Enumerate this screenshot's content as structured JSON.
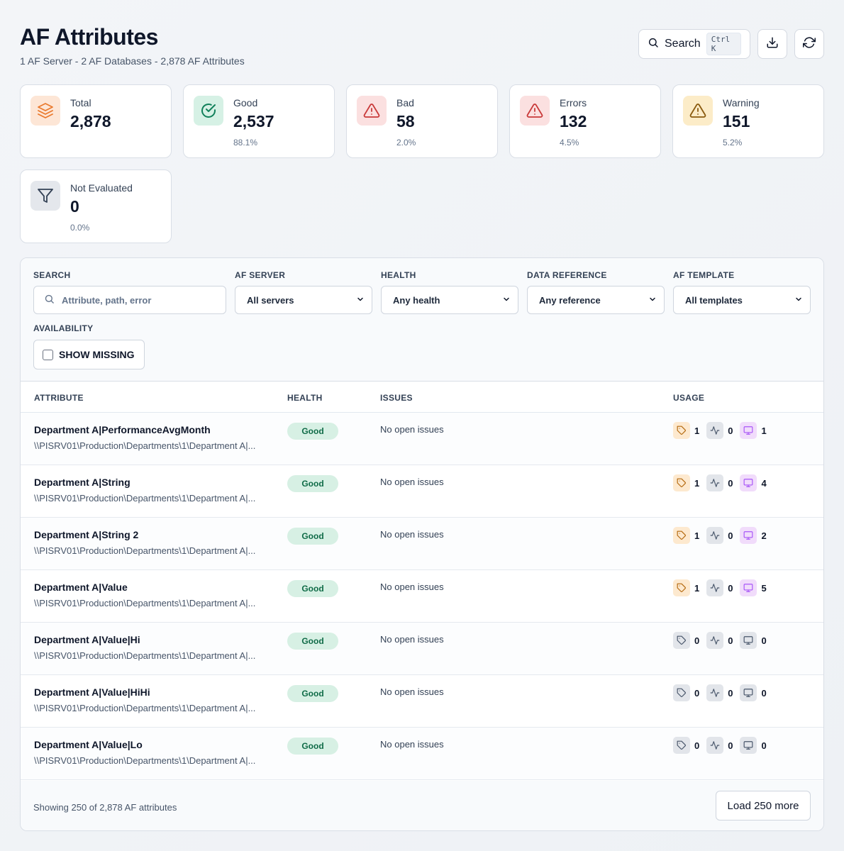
{
  "header": {
    "title": "AF Attributes",
    "subtitle": "1 AF Server - 2 AF Databases - 2,878 AF Attributes",
    "search_label": "Search",
    "search_shortcut": "Ctrl K"
  },
  "stats": [
    {
      "label": "Total",
      "value": "2,878",
      "pct": "",
      "icon": "layers-icon",
      "color": "#ea7a2e",
      "bg": "#fde6d6"
    },
    {
      "label": "Good",
      "value": "2,537",
      "pct": "88.1%",
      "icon": "check-circle-icon",
      "color": "#10805a",
      "bg": "#d6f1e5"
    },
    {
      "label": "Bad",
      "value": "58",
      "pct": "2.0%",
      "icon": "alert-triangle-icon",
      "color": "#c93a3a",
      "bg": "#fbe0e0"
    },
    {
      "label": "Errors",
      "value": "132",
      "pct": "4.5%",
      "icon": "alert-triangle-icon",
      "color": "#c93a3a",
      "bg": "#fbe0e0"
    },
    {
      "label": "Warning",
      "value": "151",
      "pct": "5.2%",
      "icon": "alert-triangle-icon",
      "color": "#8a5a0e",
      "bg": "#fcecc8"
    },
    {
      "label": "Not Evaluated",
      "value": "0",
      "pct": "0.0%",
      "icon": "filter-icon",
      "color": "#334155",
      "bg": "#e4e7ec"
    }
  ],
  "filters": {
    "search_label": "SEARCH",
    "search_placeholder": "Attribute, path, error",
    "server_label": "AF SERVER",
    "server_value": "All servers",
    "health_label": "HEALTH",
    "health_value": "Any health",
    "dataref_label": "DATA REFERENCE",
    "dataref_value": "Any reference",
    "template_label": "AF TEMPLATE",
    "template_value": "All templates",
    "availability_label": "AVAILABILITY",
    "missing_label": "SHOW MISSING"
  },
  "table": {
    "columns": [
      "ATTRIBUTE",
      "HEALTH",
      "ISSUES",
      "USAGE"
    ],
    "rows": [
      {
        "name": "Department A|PerformanceAvgMonth",
        "path": "\\\\PISRV01\\Production\\Departments\\1\\Department A|...",
        "health": "Good",
        "issues": "No open issues",
        "tags": "1",
        "activity": "0",
        "displays": "1"
      },
      {
        "name": "Department A|String",
        "path": "\\\\PISRV01\\Production\\Departments\\1\\Department A|...",
        "health": "Good",
        "issues": "No open issues",
        "tags": "1",
        "activity": "0",
        "displays": "4"
      },
      {
        "name": "Department A|String 2",
        "path": "\\\\PISRV01\\Production\\Departments\\1\\Department A|...",
        "health": "Good",
        "issues": "No open issues",
        "tags": "1",
        "activity": "0",
        "displays": "2"
      },
      {
        "name": "Department A|Value",
        "path": "\\\\PISRV01\\Production\\Departments\\1\\Department A|...",
        "health": "Good",
        "issues": "No open issues",
        "tags": "1",
        "activity": "0",
        "displays": "5"
      },
      {
        "name": "Department A|Value|Hi",
        "path": "\\\\PISRV01\\Production\\Departments\\1\\Department A|...",
        "health": "Good",
        "issues": "No open issues",
        "tags": "0",
        "activity": "0",
        "displays": "0"
      },
      {
        "name": "Department A|Value|HiHi",
        "path": "\\\\PISRV01\\Production\\Departments\\1\\Department A|...",
        "health": "Good",
        "issues": "No open issues",
        "tags": "0",
        "activity": "0",
        "displays": "0"
      },
      {
        "name": "Department A|Value|Lo",
        "path": "\\\\PISRV01\\Production\\Departments\\1\\Department A|...",
        "health": "Good",
        "issues": "No open issues",
        "tags": "0",
        "activity": "0",
        "displays": "0"
      }
    ]
  },
  "footer": {
    "showing": "Showing 250 of 2,878 AF attributes",
    "load_more": "Load 250 more"
  }
}
